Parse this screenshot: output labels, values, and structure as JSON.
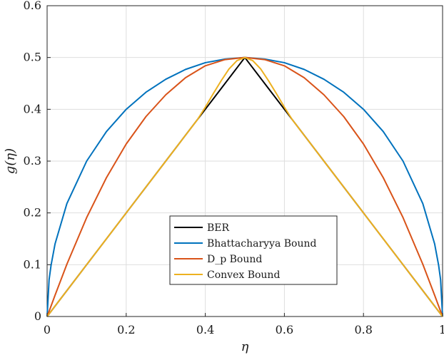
{
  "chart_data": {
    "type": "line",
    "xlabel": "η",
    "ylabel": "g(η)",
    "xlim": [
      0,
      1
    ],
    "ylim": [
      0,
      0.6
    ],
    "xticks": [
      0,
      0.2,
      0.4,
      0.6,
      0.8,
      1
    ],
    "xtick_labels": [
      "0",
      "0.2",
      "0.4",
      "0.6",
      "0.8",
      "1"
    ],
    "yticks": [
      0,
      0.1,
      0.2,
      0.3,
      0.4,
      0.5,
      0.6
    ],
    "ytick_labels": [
      "0",
      "0.1",
      "0.2",
      "0.3",
      "0.4",
      "0.5",
      "0.6"
    ],
    "grid": true,
    "legend_position": "lower-center",
    "series": [
      {
        "name": "BER",
        "color": "#000000",
        "x": [
          0,
          0.1,
          0.2,
          0.3,
          0.4,
          0.5,
          0.6,
          0.7,
          0.8,
          0.9,
          1
        ],
        "y": [
          0,
          0.1,
          0.2,
          0.3,
          0.4,
          0.5,
          0.4,
          0.3,
          0.2,
          0.1,
          0
        ]
      },
      {
        "name": "Bhattacharyya Bound",
        "color": "#0072BD",
        "x": [
          0,
          0.005,
          0.01,
          0.02,
          0.05,
          0.1,
          0.15,
          0.2,
          0.25,
          0.3,
          0.35,
          0.4,
          0.45,
          0.5,
          0.55,
          0.6,
          0.65,
          0.7,
          0.75,
          0.8,
          0.85,
          0.9,
          0.95,
          0.98,
          0.99,
          0.995,
          1
        ],
        "y": [
          0,
          0.071,
          0.099,
          0.14,
          0.218,
          0.3,
          0.357,
          0.4,
          0.433,
          0.458,
          0.477,
          0.49,
          0.497,
          0.5,
          0.497,
          0.49,
          0.477,
          0.458,
          0.433,
          0.4,
          0.357,
          0.3,
          0.218,
          0.14,
          0.099,
          0.071,
          0
        ]
      },
      {
        "name": "D_p Bound",
        "color": "#D95319",
        "x": [
          0,
          0.01,
          0.02,
          0.05,
          0.1,
          0.15,
          0.2,
          0.25,
          0.3,
          0.35,
          0.4,
          0.45,
          0.5,
          0.55,
          0.6,
          0.65,
          0.7,
          0.75,
          0.8,
          0.85,
          0.9,
          0.95,
          0.98,
          0.99,
          1
        ],
        "y": [
          0,
          0.0203,
          0.0409,
          0.101,
          0.191,
          0.268,
          0.333,
          0.386,
          0.428,
          0.461,
          0.484,
          0.496,
          0.5,
          0.496,
          0.484,
          0.461,
          0.428,
          0.386,
          0.333,
          0.268,
          0.191,
          0.101,
          0.0409,
          0.0203,
          0
        ]
      },
      {
        "name": "Convex Bound",
        "color": "#EDB120",
        "x": [
          0,
          0.05,
          0.1,
          0.15,
          0.2,
          0.25,
          0.3,
          0.35,
          0.38,
          0.4,
          0.42,
          0.44,
          0.46,
          0.48,
          0.5,
          0.52,
          0.54,
          0.56,
          0.58,
          0.6,
          0.62,
          0.65,
          0.7,
          0.75,
          0.8,
          0.85,
          0.9,
          0.95,
          1
        ],
        "y": [
          0,
          0.05,
          0.1,
          0.15,
          0.2,
          0.25,
          0.3,
          0.35,
          0.38,
          0.404,
          0.43,
          0.455,
          0.478,
          0.494,
          0.5,
          0.494,
          0.478,
          0.455,
          0.43,
          0.404,
          0.38,
          0.35,
          0.3,
          0.25,
          0.2,
          0.15,
          0.1,
          0.05,
          0
        ]
      }
    ]
  }
}
